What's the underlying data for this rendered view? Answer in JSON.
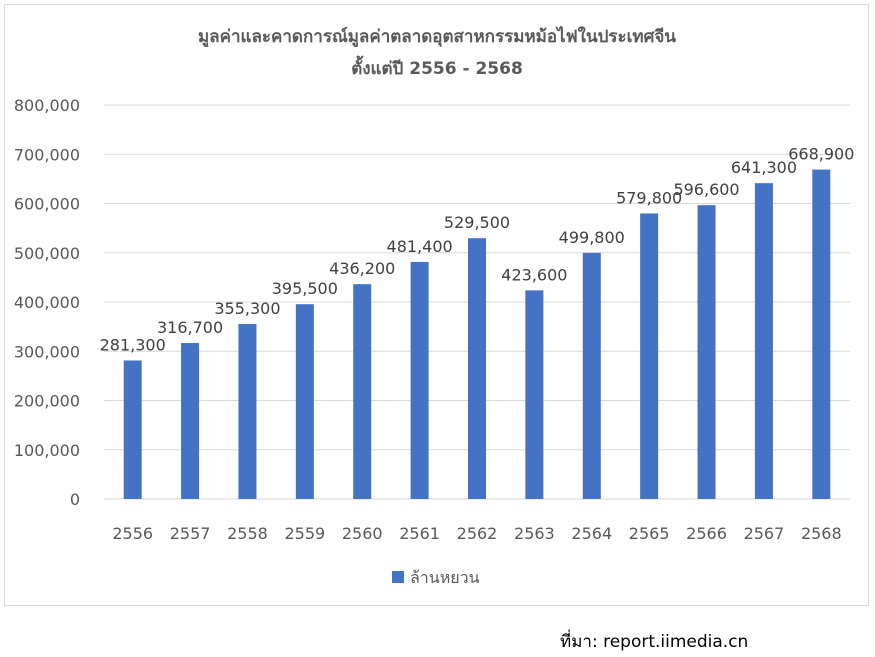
{
  "chart_data": {
    "type": "bar",
    "title": "มูลค่าและคาดการณ์มูลค่าตลาดอุตสาหกรรมหม้อไฟในประเทศจีน",
    "subtitle": "ตั้งแต่ปี 2556 - 2568",
    "categories": [
      "2556",
      "2557",
      "2558",
      "2559",
      "2560",
      "2561",
      "2562",
      "2563",
      "2564",
      "2565",
      "2566",
      "2567",
      "2568"
    ],
    "series": [
      {
        "name": "ล้านหยวน",
        "values": [
          281300,
          316700,
          355300,
          395500,
          436200,
          481400,
          529500,
          423600,
          499800,
          579800,
          596600,
          641300,
          668900
        ],
        "labels": [
          "281,300",
          "316,700",
          "355,300",
          "395,500",
          "436,200",
          "481,400",
          "529,500",
          "423,600",
          "499,800",
          "579,800",
          "596,600",
          "641,300",
          "668,900"
        ],
        "color": "#4472c4"
      }
    ],
    "ylim": [
      0,
      800000
    ],
    "yticks": [
      0,
      100000,
      200000,
      300000,
      400000,
      500000,
      600000,
      700000,
      800000
    ],
    "ytick_labels": [
      "0",
      "100,000",
      "200,000",
      "300,000",
      "400,000",
      "500,000",
      "600,000",
      "700,000",
      "800,000"
    ],
    "xlabel": "",
    "ylabel": "",
    "grid": true,
    "legend_position": "bottom",
    "gridline_color": "#d9d9d9"
  },
  "source": "ที่มา: report.iimedia.cn"
}
